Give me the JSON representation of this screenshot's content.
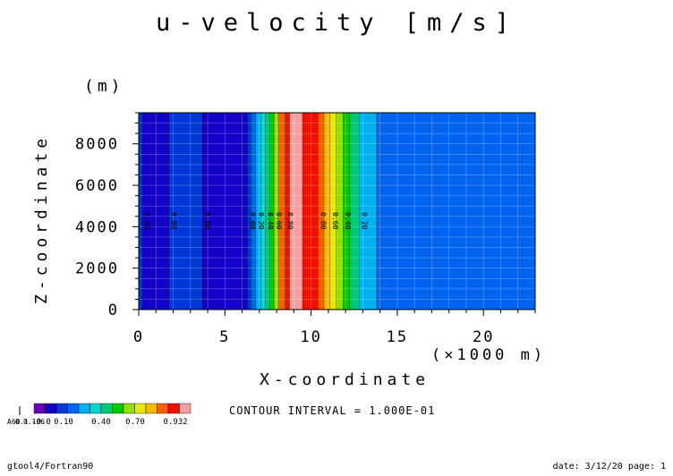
{
  "title": "u-velocity [m/s]",
  "contour_interval_text": "CONTOUR INTERVAL = 1.000E-01",
  "footer": {
    "left": "gtool4/Fortran90",
    "right": "date: 3/12/20 page: 1"
  },
  "colors": {
    "background": "#ffffff",
    "bands": [
      "#6a00b8",
      "#1400c8",
      "#0038d8",
      "#0064f0",
      "#00b0f0",
      "#00d8c8",
      "#00c878",
      "#00c800",
      "#90e000",
      "#e8e800",
      "#f8b800",
      "#f86000",
      "#f01000",
      "#f8a0a0"
    ]
  },
  "chart_data": {
    "type": "heatmap",
    "title": "u-velocity [m/s]",
    "xlabel": "X-coordinate",
    "xunit": "(×1000 m)",
    "ylabel": "Z-coordinate",
    "yunit": "(m)",
    "xlim": [
      0,
      23
    ],
    "ylim": [
      0,
      9500
    ],
    "x_ticks": [
      0,
      5,
      10,
      15,
      20
    ],
    "y_ticks": [
      0,
      2000,
      4000,
      6000,
      8000
    ],
    "x_minor_step": 1,
    "y_minor_step": 500,
    "grid": true,
    "regions": [
      {
        "x0": 0.0,
        "x1": 0.2,
        "level": 2
      },
      {
        "x0": 0.2,
        "x1": 1.75,
        "level": 1
      },
      {
        "x0": 1.75,
        "x1": 3.7,
        "level": 2
      },
      {
        "x0": 3.7,
        "x1": 5.1,
        "level": 1
      },
      {
        "x0": 5.1,
        "x1": 6.3,
        "level": 1
      },
      {
        "x0": 6.3,
        "x1": 6.5,
        "level": 2
      },
      {
        "x0": 6.5,
        "x1": 6.8,
        "level": 3
      },
      {
        "x0": 6.8,
        "x1": 7.1,
        "level": 4
      },
      {
        "x0": 7.1,
        "x1": 7.35,
        "level": 5
      },
      {
        "x0": 7.35,
        "x1": 7.6,
        "level": 6
      },
      {
        "x0": 7.6,
        "x1": 7.85,
        "level": 7
      },
      {
        "x0": 7.85,
        "x1": 8.1,
        "level": 8
      },
      {
        "x0": 8.1,
        "x1": 8.5,
        "level": 11
      },
      {
        "x0": 8.5,
        "x1": 8.75,
        "level": 12
      },
      {
        "x0": 8.75,
        "x1": 9.5,
        "level": 13
      },
      {
        "x0": 9.5,
        "x1": 10.4,
        "level": 12
      },
      {
        "x0": 10.4,
        "x1": 10.75,
        "level": 11
      },
      {
        "x0": 10.75,
        "x1": 11.1,
        "level": 10
      },
      {
        "x0": 11.1,
        "x1": 11.45,
        "level": 9
      },
      {
        "x0": 11.45,
        "x1": 11.85,
        "level": 8
      },
      {
        "x0": 11.85,
        "x1": 12.25,
        "level": 7
      },
      {
        "x0": 12.25,
        "x1": 12.8,
        "level": 6
      },
      {
        "x0": 12.8,
        "x1": 13.8,
        "level": 4
      },
      {
        "x0": 13.8,
        "x1": 23.0,
        "level": 3
      }
    ],
    "contour_labels": [
      {
        "x": 0.2,
        "text": "0.20"
      },
      {
        "x": 1.75,
        "text": "0.00"
      },
      {
        "x": 3.7,
        "text": "0.00"
      },
      {
        "x": 6.3,
        "text": "0.00"
      },
      {
        "x": 6.8,
        "text": "0.20"
      },
      {
        "x": 7.35,
        "text": "0.40"
      },
      {
        "x": 7.85,
        "text": "0.60"
      },
      {
        "x": 8.5,
        "text": "0.80"
      },
      {
        "x": 10.4,
        "text": "0.80"
      },
      {
        "x": 11.1,
        "text": "0.60"
      },
      {
        "x": 11.85,
        "text": "0.40"
      },
      {
        "x": 12.8,
        "text": "0.20"
      }
    ],
    "contour_label_y": 4700,
    "legend": {
      "labels": [
        "-0.0",
        "0.10",
        "0.40",
        "0.70",
        "0.932"
      ],
      "overlapped_labels": [
        "A60",
        "0.1",
        "0.106"
      ]
    }
  }
}
